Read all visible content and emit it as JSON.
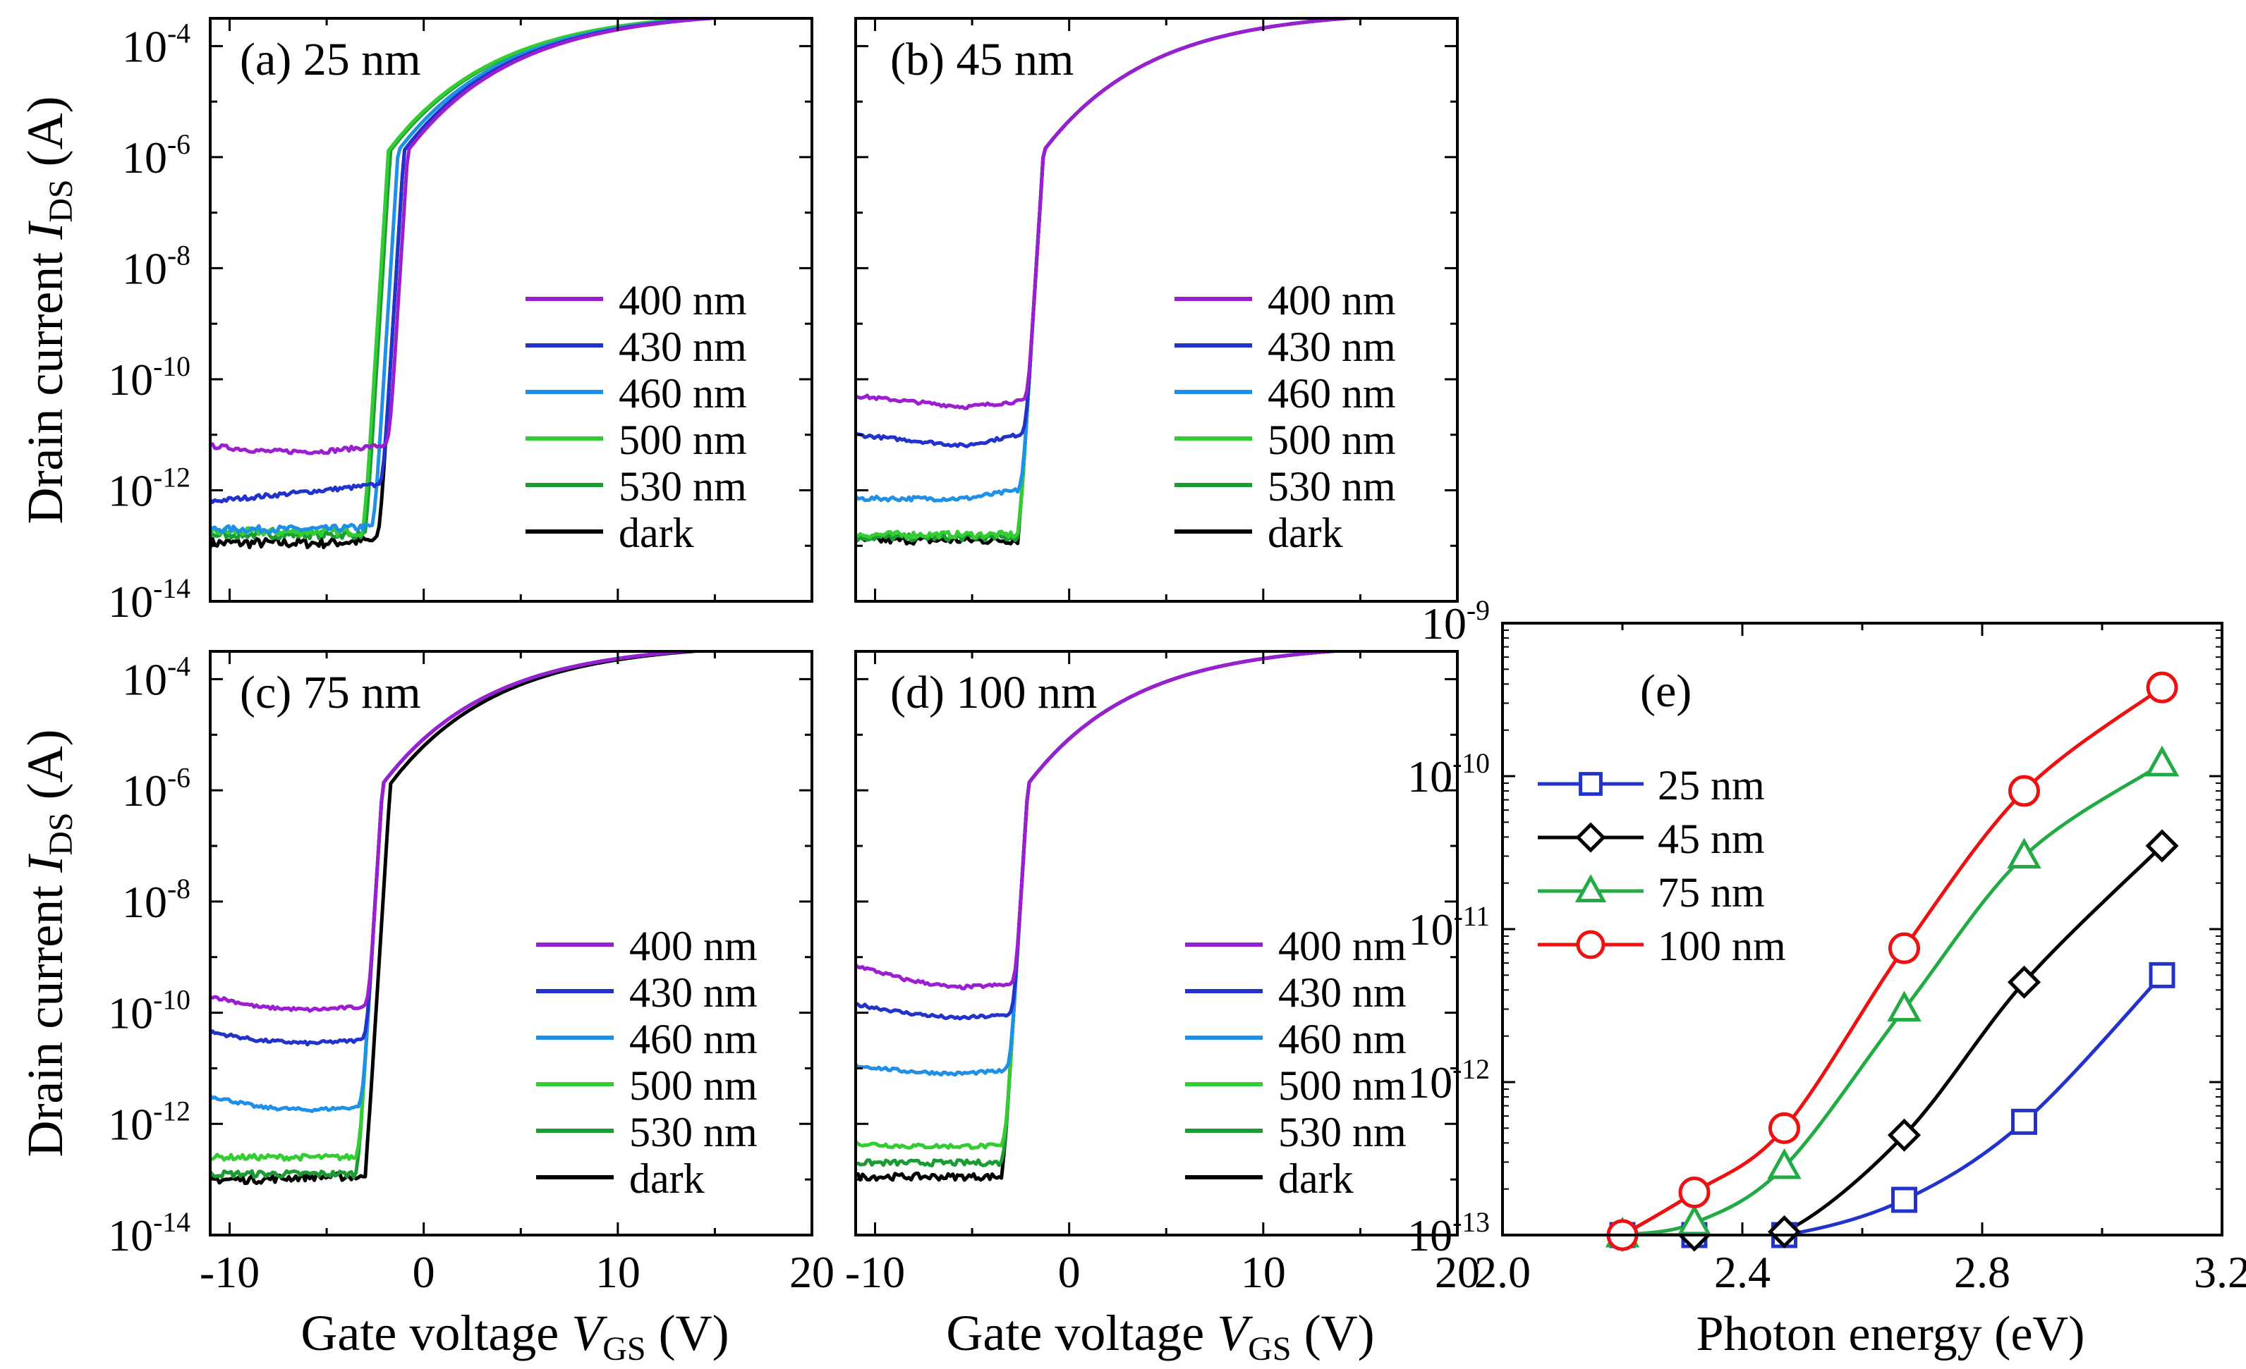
{
  "figure": {
    "shared": {
      "ylabel_prefix": "Drain current ",
      "ylabel_var": "I",
      "ylabel_sub": "DS",
      "ylabel_suffix": " (A)",
      "xlabel_prefix": "Gate voltage  ",
      "xlabel_var": "V",
      "xlabel_sub": "GS",
      "xlabel_suffix": " (V)",
      "y_tick_base": "10",
      "y_tick_exponents": [
        "-4",
        "-6",
        "-8",
        "-10",
        "-12",
        "-14"
      ],
      "x_tick_labels": [
        "-10",
        "0",
        "10",
        "20"
      ]
    }
  },
  "chart_data": [
    {
      "id": "a",
      "type": "line",
      "title": "(a) 25  nm",
      "xlabel": "Gate voltage VGS (V)",
      "ylabel": "Drain current IDS (A)",
      "xlim": [
        -11,
        20
      ],
      "ylim_log10": [
        -14,
        -3.5
      ],
      "yscale": "log",
      "legend_position": "center-right",
      "series": [
        {
          "name": "400 nm",
          "color": "#9b1fd1",
          "off_current_log10": [
            -11.2,
            -11.3,
            -11.3,
            -11.2
          ],
          "on_shift_V": 0.2,
          "noise": 0.04
        },
        {
          "name": "430 nm",
          "color": "#2233cc",
          "off_current_log10": [
            -12.2,
            -12.1,
            -12.0,
            -11.9
          ],
          "on_shift_V": 0.0,
          "noise": 0.04
        },
        {
          "name": "460 nm",
          "color": "#1e90e8",
          "off_current_log10": [
            -12.7,
            -12.7,
            -12.7,
            -12.65
          ],
          "on_shift_V": -0.3,
          "noise": 0.06
        },
        {
          "name": "500 nm",
          "color": "#33cc33",
          "off_current_log10": [
            -12.75,
            -12.75,
            -12.75,
            -12.75
          ],
          "on_shift_V": -0.8,
          "noise": 0.07
        },
        {
          "name": "530 nm",
          "color": "#1a9c33",
          "off_current_log10": [
            -12.8,
            -12.8,
            -12.8,
            -12.8
          ],
          "on_shift_V": -0.7,
          "noise": 0.07
        },
        {
          "name": "dark",
          "color": "#000000",
          "off_current_log10": [
            -12.95,
            -12.95,
            -12.95,
            -12.9
          ],
          "on_shift_V": 0.0,
          "noise": 0.09
        }
      ]
    },
    {
      "id": "b",
      "type": "line",
      "title": "(b) 45  nm",
      "xlabel": "Gate voltage VGS (V)",
      "ylabel": "Drain current IDS (A)",
      "xlim": [
        -11,
        20
      ],
      "ylim_log10": [
        -14,
        -3.5
      ],
      "yscale": "log",
      "legend_position": "center-right",
      "series": [
        {
          "name": "400 nm",
          "color": "#9b1fd1",
          "off_current_log10": [
            -10.3,
            -10.4,
            -10.5,
            -10.4
          ],
          "on_shift_V": 0.0,
          "noise": 0.03
        },
        {
          "name": "430 nm",
          "color": "#2233cc",
          "off_current_log10": [
            -11.0,
            -11.1,
            -11.2,
            -11.0
          ],
          "on_shift_V": 0.0,
          "noise": 0.03
        },
        {
          "name": "460 nm",
          "color": "#1e90e8",
          "off_current_log10": [
            -12.15,
            -12.15,
            -12.15,
            -12.0
          ],
          "on_shift_V": 0.0,
          "noise": 0.04
        },
        {
          "name": "500 nm",
          "color": "#33cc33",
          "off_current_log10": [
            -12.8,
            -12.8,
            -12.8,
            -12.8
          ],
          "on_shift_V": 0.0,
          "noise": 0.06
        },
        {
          "name": "530 nm",
          "color": "#1a9c33",
          "off_current_log10": [
            -12.85,
            -12.85,
            -12.85,
            -12.85
          ],
          "on_shift_V": 0.0,
          "noise": 0.06
        },
        {
          "name": "dark",
          "color": "#000000",
          "off_current_log10": [
            -12.9,
            -12.9,
            -12.9,
            -12.9
          ],
          "on_shift_V": 0.0,
          "noise": 0.07
        }
      ]
    },
    {
      "id": "c",
      "type": "line",
      "title": "(c) 75  nm",
      "xlabel": "Gate voltage VGS (V)",
      "ylabel": "Drain current IDS (A)",
      "xlim": [
        -11,
        20
      ],
      "ylim_log10": [
        -14,
        -3.5
      ],
      "yscale": "log",
      "legend_position": "center-right",
      "series": [
        {
          "name": "400 nm",
          "color": "#9b1fd1",
          "off_current_log10": [
            -9.7,
            -9.9,
            -9.95,
            -9.9
          ],
          "on_shift_V": 0.0,
          "noise": 0.03
        },
        {
          "name": "430 nm",
          "color": "#2233cc",
          "off_current_log10": [
            -10.35,
            -10.5,
            -10.55,
            -10.5
          ],
          "on_shift_V": 0.0,
          "noise": 0.03
        },
        {
          "name": "460 nm",
          "color": "#1e90e8",
          "off_current_log10": [
            -11.5,
            -11.7,
            -11.75,
            -11.7
          ],
          "on_shift_V": 0.0,
          "noise": 0.03
        },
        {
          "name": "500 nm",
          "color": "#33cc33",
          "off_current_log10": [
            -12.6,
            -12.6,
            -12.6,
            -12.6
          ],
          "on_shift_V": 0.0,
          "noise": 0.05
        },
        {
          "name": "530 nm",
          "color": "#1a9c33",
          "off_current_log10": [
            -12.9,
            -12.9,
            -12.9,
            -12.9
          ],
          "on_shift_V": 0.0,
          "noise": 0.06
        },
        {
          "name": "dark",
          "color": "#000000",
          "off_current_log10": [
            -13.0,
            -13.0,
            -12.95,
            -12.95
          ],
          "on_shift_V": 0.4,
          "noise": 0.07
        }
      ]
    },
    {
      "id": "d",
      "type": "line",
      "title": "(d) 100  nm",
      "xlabel": "Gate voltage VGS (V)",
      "ylabel": "Drain current IDS (A)",
      "xlim": [
        -11,
        20
      ],
      "ylim_log10": [
        -14,
        -3.5
      ],
      "yscale": "log",
      "legend_position": "center-right",
      "series": [
        {
          "name": "400 nm",
          "color": "#9b1fd1",
          "off_current_log10": [
            -9.15,
            -9.4,
            -9.55,
            -9.5
          ],
          "on_shift_V": 0.0,
          "noise": 0.03
        },
        {
          "name": "430 nm",
          "color": "#2233cc",
          "off_current_log10": [
            -9.85,
            -10.0,
            -10.1,
            -10.05
          ],
          "on_shift_V": 0.0,
          "noise": 0.03
        },
        {
          "name": "460 nm",
          "color": "#1e90e8",
          "off_current_log10": [
            -10.95,
            -11.05,
            -11.1,
            -11.05
          ],
          "on_shift_V": 0.0,
          "noise": 0.03
        },
        {
          "name": "500 nm",
          "color": "#33cc33",
          "off_current_log10": [
            -12.35,
            -12.4,
            -12.4,
            -12.4
          ],
          "on_shift_V": 0.0,
          "noise": 0.04
        },
        {
          "name": "530 nm",
          "color": "#1a9c33",
          "off_current_log10": [
            -12.7,
            -12.7,
            -12.7,
            -12.7
          ],
          "on_shift_V": 0.0,
          "noise": 0.05
        },
        {
          "name": "dark",
          "color": "#000000",
          "off_current_log10": [
            -12.95,
            -12.95,
            -12.95,
            -12.95
          ],
          "on_shift_V": 0.0,
          "noise": 0.06
        }
      ]
    },
    {
      "id": "e",
      "type": "line",
      "title": "(e)",
      "xlabel": "Photon energy (eV)",
      "ylabel": "",
      "xlim": [
        2.0,
        3.2
      ],
      "ylim_log10": [
        -13,
        -9
      ],
      "yscale": "log",
      "x_tick_labels": [
        "2.0",
        "2.4",
        "2.8",
        "3.2"
      ],
      "x_ticks": [
        2.0,
        2.4,
        2.8,
        3.2
      ],
      "y_tick_base": "10",
      "y_tick_exponents": [
        "-9",
        "-10",
        "-11",
        "-12",
        "-13"
      ],
      "legend_position": "upper-left",
      "x": [
        2.2,
        2.32,
        2.47,
        2.67,
        2.87,
        3.1
      ],
      "series": [
        {
          "name": "25 nm",
          "color": "#2233cc",
          "marker": "square",
          "values": [
            1e-13,
            1e-13,
            1e-13,
            1.7e-13,
            5.5e-13,
            5e-12
          ]
        },
        {
          "name": "45 nm",
          "color": "#000000",
          "marker": "diamond",
          "values": [
            1e-13,
            1e-13,
            1.05e-13,
            4.5e-13,
            4.5e-12,
            3.5e-11
          ]
        },
        {
          "name": "75 nm",
          "color": "#22aa44",
          "marker": "triangle",
          "values": [
            1e-13,
            1.2e-13,
            2.8e-13,
            3e-12,
            3e-11,
            1.2e-10
          ]
        },
        {
          "name": "100 nm",
          "color": "#ee1111",
          "marker": "circle",
          "values": [
            1e-13,
            1.9e-13,
            5e-13,
            7.5e-12,
            8e-11,
            3.8e-10
          ]
        }
      ]
    }
  ]
}
